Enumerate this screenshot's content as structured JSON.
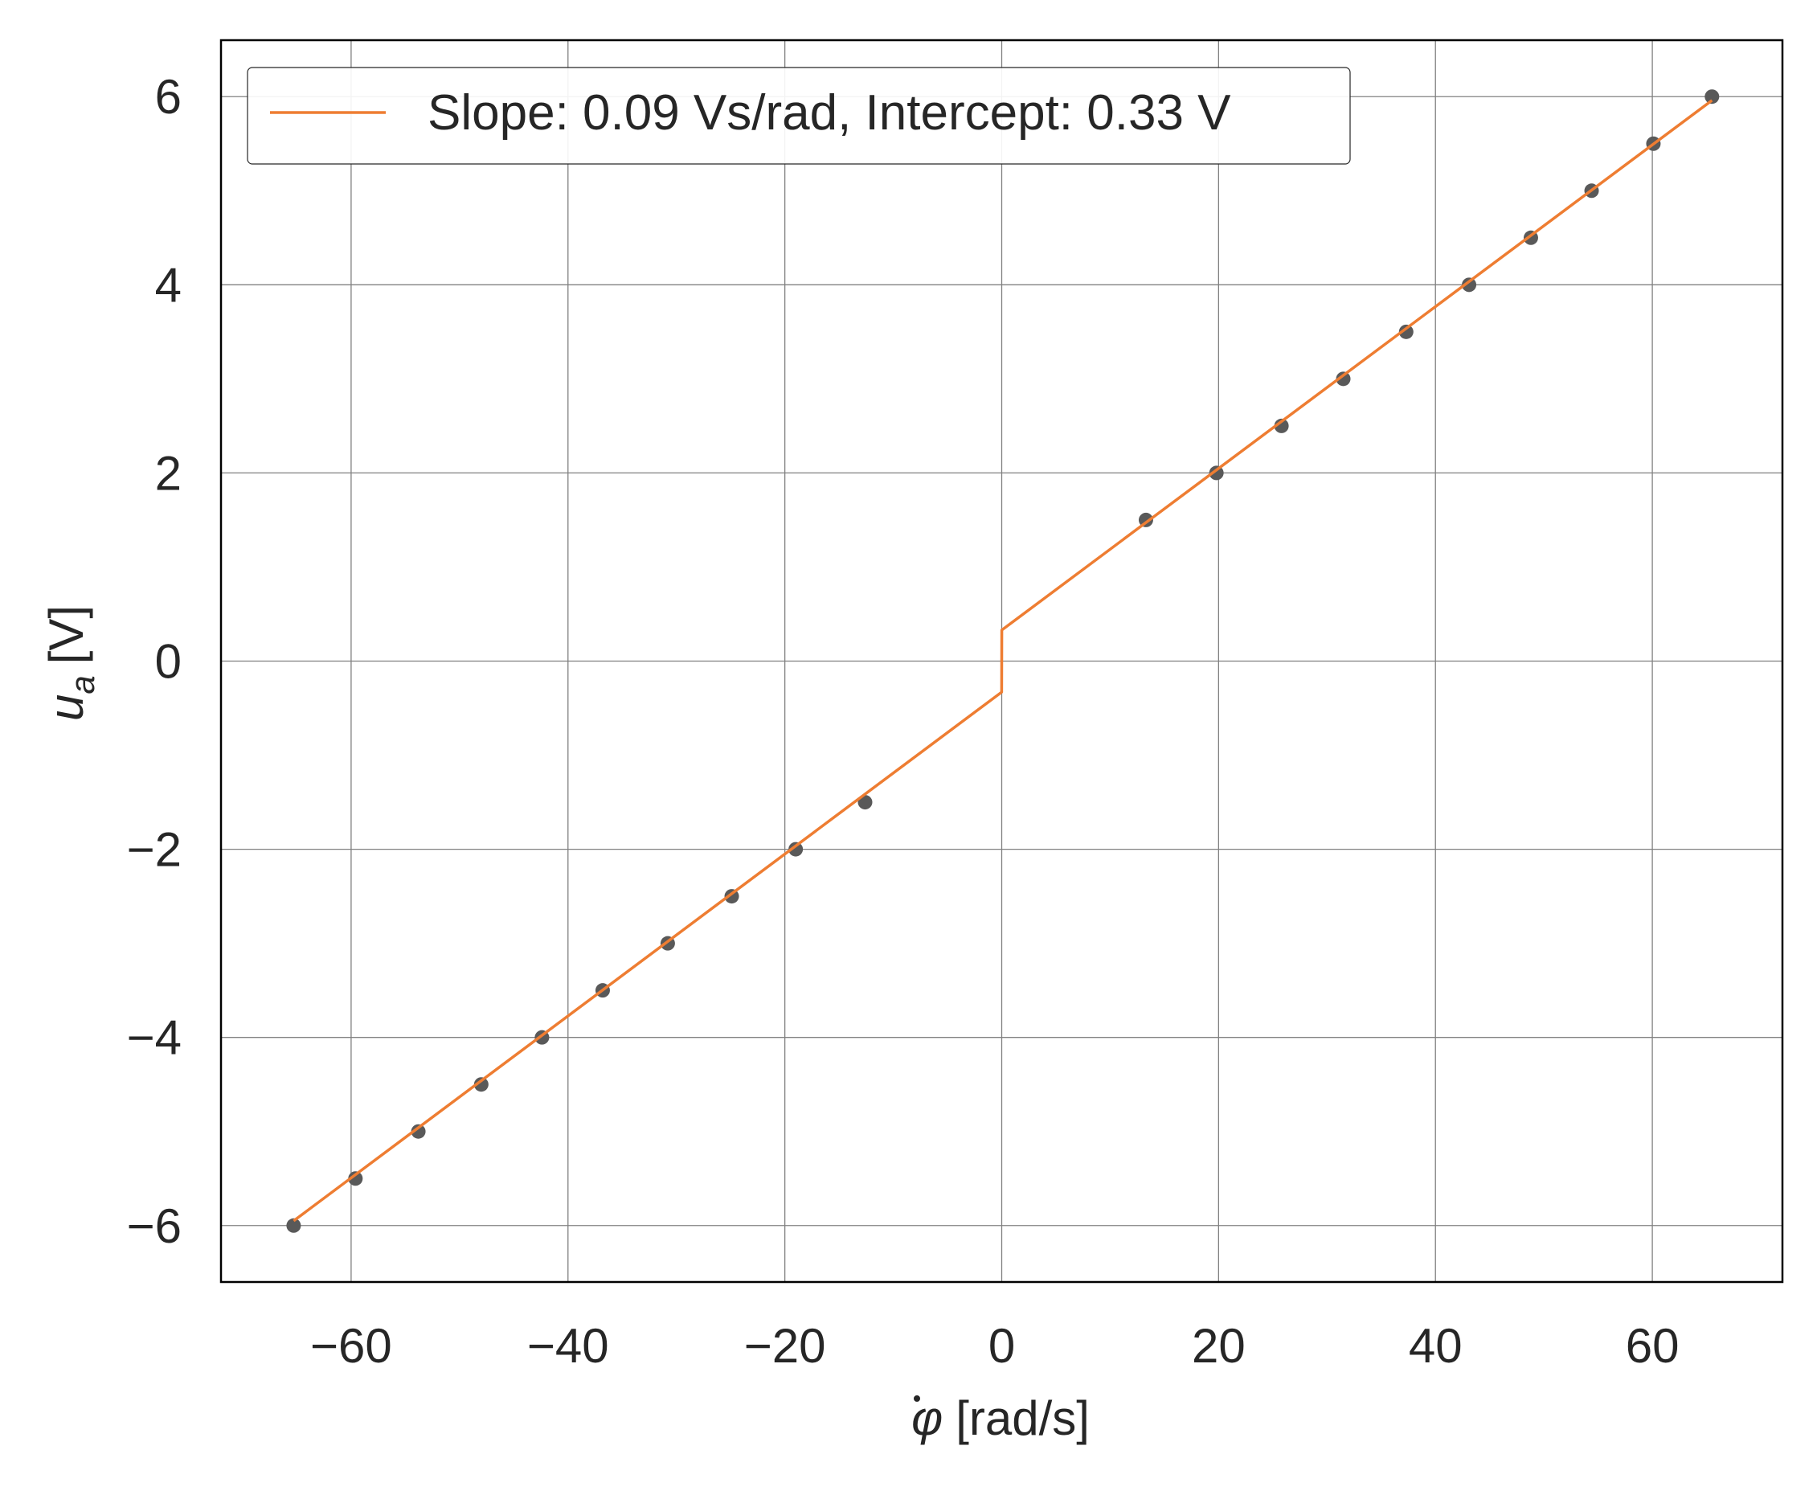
{
  "chart_data": {
    "type": "scatter",
    "title": "",
    "xlabel": "[rad/s]",
    "xlabel_symbol": "φ",
    "ylabel": "[V]",
    "ylabel_symbol": "u",
    "ylabel_subscript": "a",
    "xlim": [
      -72,
      72
    ],
    "ylim": [
      -6.6,
      6.6
    ],
    "x_ticks": [
      -60,
      -40,
      -20,
      0,
      20,
      40,
      60
    ],
    "x_tick_labels": [
      "−60",
      "−40",
      "−20",
      "0",
      "20",
      "40",
      "60"
    ],
    "y_ticks": [
      -6,
      -4,
      -2,
      0,
      2,
      4,
      6
    ],
    "y_tick_labels": [
      "−6",
      "−4",
      "−2",
      "0",
      "2",
      "4",
      "6"
    ],
    "grid": true,
    "legend_position": "top-left",
    "series": [
      {
        "kind": "scatter",
        "color": "#595959",
        "points": [
          [
            -65.3,
            -6.0
          ],
          [
            -59.6,
            -5.5
          ],
          [
            -53.8,
            -5.0
          ],
          [
            -48.0,
            -4.5
          ],
          [
            -42.4,
            -4.0
          ],
          [
            -36.8,
            -3.5
          ],
          [
            -30.8,
            -3.0
          ],
          [
            -24.9,
            -2.5
          ],
          [
            -19.0,
            -2.0
          ],
          [
            -12.6,
            -1.5
          ],
          [
            13.3,
            1.5
          ],
          [
            19.8,
            2.0
          ],
          [
            25.8,
            2.5
          ],
          [
            31.5,
            3.0
          ],
          [
            37.3,
            3.5
          ],
          [
            43.1,
            4.0
          ],
          [
            48.8,
            4.5
          ],
          [
            54.4,
            5.0
          ],
          [
            60.1,
            5.5
          ],
          [
            65.5,
            6.0
          ]
        ]
      },
      {
        "kind": "line",
        "name": "Slope: 0.09 Vs/rad, Intercept: 0.33 V",
        "color": "#ee7d32",
        "points": [
          [
            -65.3,
            -5.95
          ],
          [
            -0.01,
            -0.33
          ],
          [
            0.01,
            0.33
          ],
          [
            65.5,
            5.96
          ]
        ]
      }
    ]
  }
}
